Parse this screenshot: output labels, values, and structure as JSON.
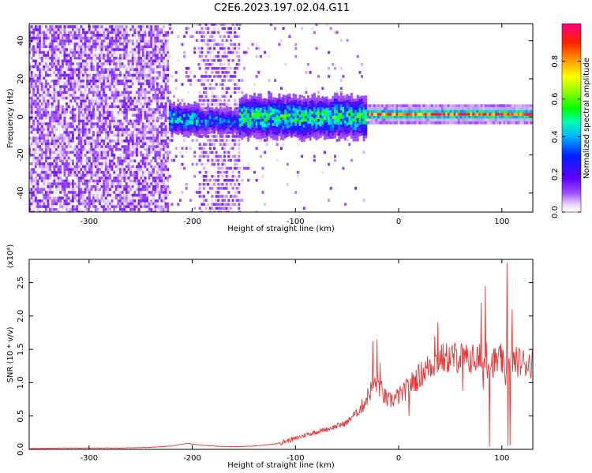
{
  "title": "C2E6.2023.197.02.04.G11",
  "colors": {
    "snr_line": "#ee3333",
    "axis": "#000000"
  },
  "chart_data": [
    {
      "type": "heatmap",
      "xlabel": "Height of straight line (km)",
      "ylabel": "Frequency (Hz)",
      "xlim": [
        -358,
        130
      ],
      "ylim": [
        -50,
        49
      ],
      "xticks": [
        -300,
        -200,
        -100,
        0,
        100
      ],
      "yticks": [
        -40,
        -20,
        0,
        20,
        40
      ],
      "xtick_labels": [
        "-300",
        "-200",
        "-100",
        "0",
        "100"
      ],
      "ytick_labels": [
        "-40",
        "-20",
        "0",
        "20",
        "40"
      ],
      "colorbar": {
        "label": "Normalized spectral amplitude",
        "range": [
          0.0,
          1.0
        ],
        "ticks": [
          "0.0",
          "0.2",
          "0.4",
          "0.6",
          "0.8"
        ],
        "tick_values": [
          0.0,
          0.2,
          0.4,
          0.6,
          0.8
        ],
        "colormap": "rainbow"
      },
      "segments": [
        {
          "x_range": [
            -358,
            -222
          ],
          "pattern": "noise",
          "density": 0.75,
          "amplitude": [
            0.02,
            0.16
          ],
          "y_range": [
            -50,
            49
          ]
        },
        {
          "x_range": [
            -222,
            -193
          ],
          "pattern": "signal",
          "center": -1,
          "halfwidth": 6,
          "amplitude": [
            0.1,
            0.48
          ],
          "noise_density": 0.15
        },
        {
          "x_range": [
            -193,
            -154
          ],
          "pattern": "signal",
          "center": -2,
          "halfwidth": 5,
          "amplitude": [
            0.1,
            0.4
          ],
          "noise_density": 0.6
        },
        {
          "x_range": [
            -154,
            -30
          ],
          "pattern": "signal",
          "center": 0,
          "halfwidth": 8,
          "amplitude": [
            0.1,
            0.55
          ],
          "noise_density": 0.05
        },
        {
          "x_range": [
            -30,
            130
          ],
          "pattern": "tone",
          "center": 1.5,
          "halfwidth": 2,
          "amplitude": [
            0.35,
            0.95
          ]
        }
      ]
    },
    {
      "type": "line",
      "xlabel": "Height of straight line (km)",
      "ylabel": "SNR (10 * v/v)",
      "y_multiplier": "(x10⁴)",
      "xlim": [
        -358,
        130
      ],
      "ylim": [
        0,
        2.85
      ],
      "xticks": [
        -300,
        -200,
        -100,
        0,
        100
      ],
      "yticks": [
        0.0,
        0.5,
        1.0,
        1.5,
        2.0,
        2.5
      ],
      "xtick_labels": [
        "-300",
        "-200",
        "-100",
        "0",
        "100"
      ],
      "ytick_labels": [
        "0.0",
        "0.5",
        "1.0",
        "1.5",
        "2.0",
        "2.5"
      ],
      "series": [
        {
          "color": "#ee3333",
          "x": [
            -358,
            -330,
            -300,
            -270,
            -240,
            -220,
            -205,
            -195,
            -180,
            -160,
            -140,
            -120,
            -110,
            -100,
            -90,
            -80,
            -70,
            -60,
            -50,
            -45,
            -40,
            -35,
            -30,
            -25,
            -20,
            -15,
            -10,
            -5,
            0,
            5,
            10,
            20,
            30,
            40,
            50,
            60,
            70,
            80,
            85,
            90,
            95,
            100,
            103,
            106,
            110,
            115,
            120,
            130
          ],
          "y": [
            0.01,
            0.02,
            0.02,
            0.02,
            0.03,
            0.05,
            0.09,
            0.07,
            0.05,
            0.04,
            0.05,
            0.08,
            0.12,
            0.16,
            0.22,
            0.26,
            0.3,
            0.35,
            0.4,
            0.5,
            0.55,
            0.65,
            0.8,
            0.95,
            1.0,
            0.82,
            0.72,
            0.75,
            0.8,
            0.85,
            0.95,
            1.1,
            1.25,
            1.35,
            1.38,
            1.38,
            1.36,
            1.35,
            1.3,
            1.3,
            1.32,
            1.35,
            1.1,
            1.2,
            1.3,
            1.32,
            1.3,
            1.3
          ],
          "spikes": [
            [
              -25,
              1.62
            ],
            [
              -21,
              1.65
            ],
            [
              -18,
              1.3
            ],
            [
              10,
              0.5
            ],
            [
              30,
              1.35
            ],
            [
              35,
              1.7
            ],
            [
              38,
              1.9
            ],
            [
              41,
              1.3
            ],
            [
              45,
              1.45
            ],
            [
              62,
              0.88
            ],
            [
              66,
              1.3
            ],
            [
              78,
              1.25
            ],
            [
              80,
              2.2
            ],
            [
              82,
              0.9
            ],
            [
              84,
              2.45
            ],
            [
              85,
              1.6
            ],
            [
              88,
              0.04
            ],
            [
              95,
              1.45
            ],
            [
              105,
              2.8
            ],
            [
              106,
              0.05
            ],
            [
              108,
              0.06
            ],
            [
              110,
              2.1
            ]
          ]
        }
      ]
    }
  ]
}
